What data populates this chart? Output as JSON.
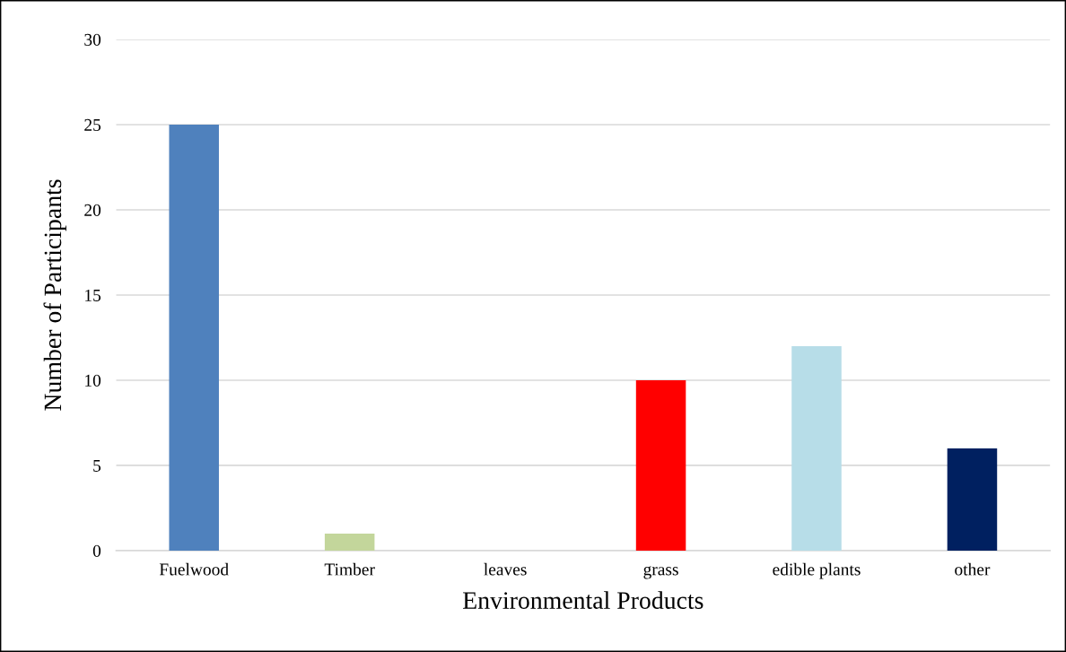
{
  "chart_data": {
    "type": "bar",
    "xlabel": "Environmental Products",
    "ylabel": "Number of Participants",
    "categories": [
      "Fuelwood",
      "Timber",
      "leaves",
      "grass",
      "edible plants",
      "other"
    ],
    "values": [
      25,
      1,
      0,
      10,
      12,
      6
    ],
    "colors": [
      "#4f81bd",
      "#c3d69b",
      "#9bbb59",
      "#ff0000",
      "#b7dde8",
      "#002060"
    ],
    "ylim": [
      0,
      30
    ],
    "yticks": [
      0,
      5,
      10,
      15,
      20,
      25,
      30
    ],
    "grid": "y",
    "legend": false
  }
}
